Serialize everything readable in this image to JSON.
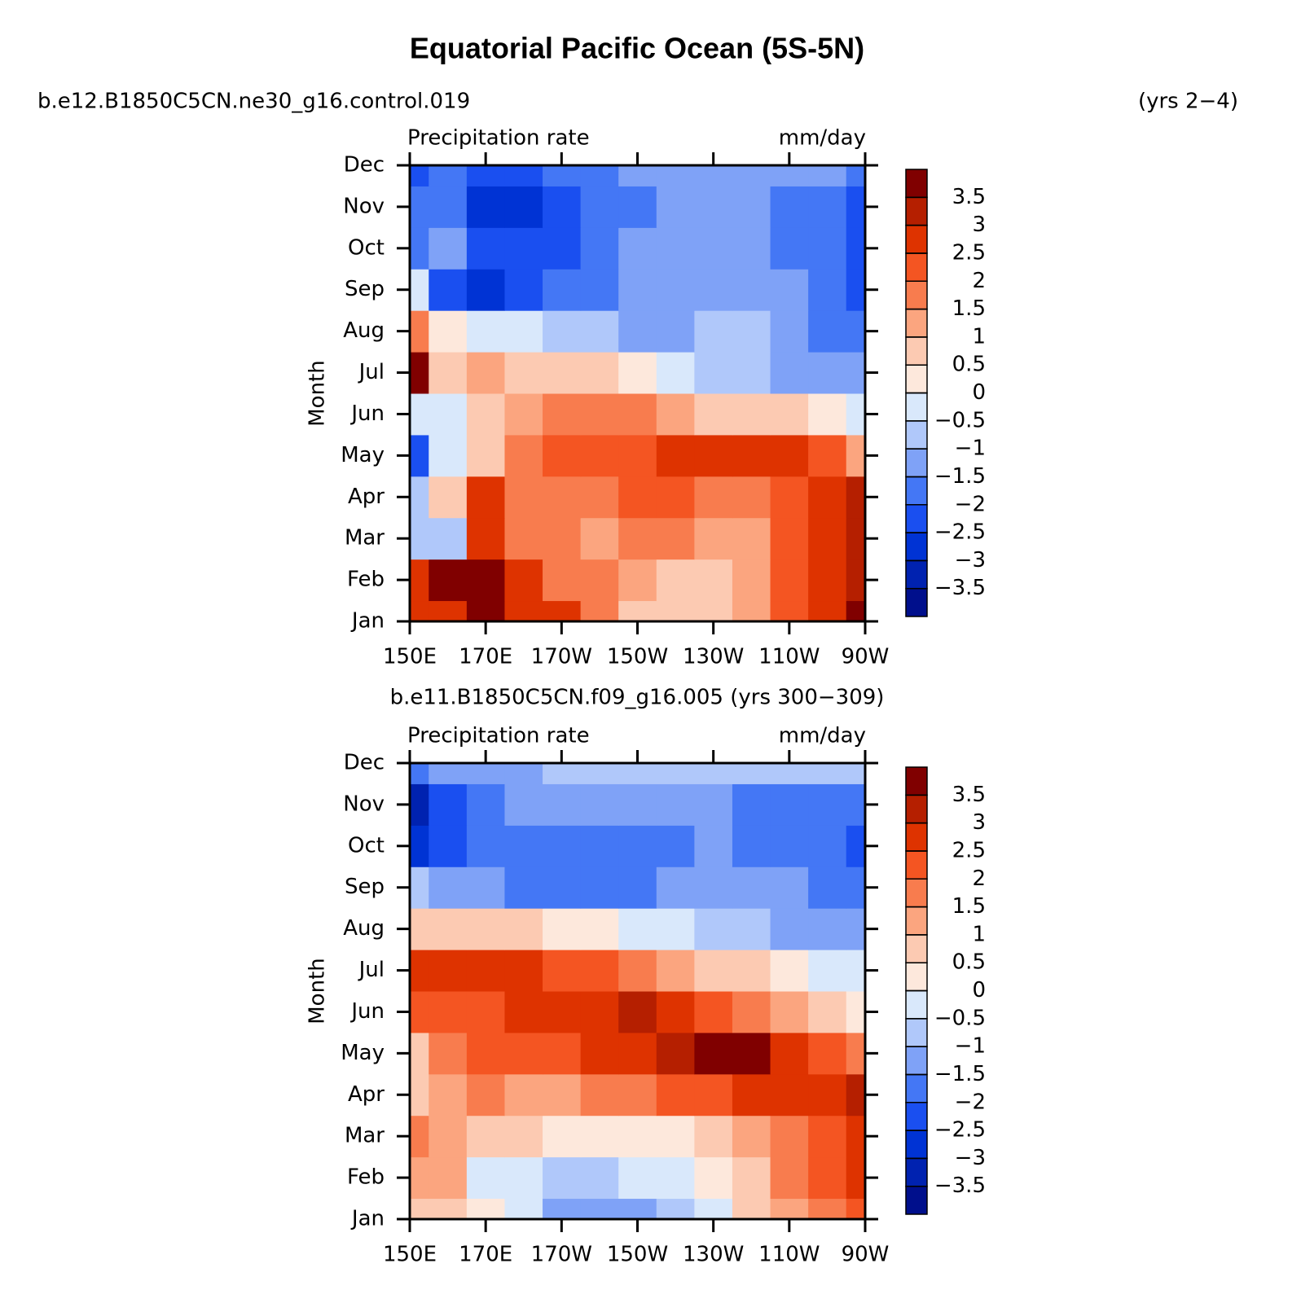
{
  "title": "Equatorial Pacific Ocean (5S-5N)",
  "chart_data": [
    {
      "type": "contour",
      "subtitle": "b.e12.B1850C5CN.ne30_g16.control.019",
      "subtitle_right": "(yrs 2−4)",
      "label_left": "Precipitation rate",
      "label_right": "mm/day",
      "ylabel": "Month",
      "categories": [
        "Jan",
        "Feb",
        "Mar",
        "Apr",
        "May",
        "Jun",
        "Jul",
        "Aug",
        "Sep",
        "Oct",
        "Nov",
        "Dec"
      ],
      "x": [
        150,
        160,
        170,
        180,
        190,
        200,
        210,
        220,
        230,
        240,
        250,
        260,
        270
      ],
      "xlim": [
        150,
        270
      ],
      "xticks": [
        {
          "value": 150,
          "label": "150E"
        },
        {
          "value": 170,
          "label": "170E"
        },
        {
          "value": 190,
          "label": "170W"
        },
        {
          "value": 210,
          "label": "150W"
        },
        {
          "value": 230,
          "label": "130W"
        },
        {
          "value": 250,
          "label": "110W"
        },
        {
          "value": 270,
          "label": "90W"
        }
      ],
      "values": [
        [
          2.5,
          2.5,
          3.5,
          2.5,
          2.5,
          1.5,
          0.5,
          0.5,
          0.5,
          1,
          2,
          2.5,
          3.5
        ],
        [
          2.5,
          3.5,
          3.5,
          2.5,
          1.5,
          1.5,
          1,
          0.5,
          0.5,
          1,
          2,
          2.5,
          3
        ],
        [
          -1,
          -1,
          2.5,
          1.5,
          1.5,
          1,
          1.5,
          1.5,
          1,
          1,
          2,
          2.5,
          3
        ],
        [
          -1,
          0.5,
          2.5,
          1.5,
          1.5,
          1.5,
          2,
          2,
          1.5,
          1.5,
          2,
          2.5,
          3
        ],
        [
          -2.5,
          -0.5,
          0.5,
          1.5,
          2,
          2,
          2,
          2.5,
          2.5,
          2.5,
          2.5,
          2,
          1
        ],
        [
          -0.5,
          -0.5,
          0.5,
          1,
          1.5,
          1.5,
          1.5,
          1,
          0.5,
          0.5,
          0.5,
          0,
          -0.5
        ],
        [
          3.5,
          0.5,
          1,
          0.5,
          0.5,
          0.5,
          0,
          -0.5,
          -1,
          -1,
          -1.5,
          -1.5,
          -1.5
        ],
        [
          1.5,
          0,
          -0.5,
          -0.5,
          -1,
          -1,
          -1.5,
          -1.5,
          -1,
          -1,
          -1.5,
          -2,
          -2
        ],
        [
          -0.5,
          -2.5,
          -3,
          -2.5,
          -2,
          -2,
          -1.5,
          -1.5,
          -1.5,
          -1.5,
          -1.5,
          -2,
          -2.5
        ],
        [
          -2,
          -1.5,
          -2.5,
          -2.5,
          -2.5,
          -2,
          -1.5,
          -1.5,
          -1.5,
          -1.5,
          -2,
          -2,
          -2.5
        ],
        [
          -2,
          -2,
          -3,
          -3,
          -2.5,
          -2,
          -2,
          -1.5,
          -1.5,
          -1.5,
          -2,
          -2,
          -2.5
        ],
        [
          -2.5,
          -2,
          -2.5,
          -2.5,
          -2,
          -2,
          -1.5,
          -1.5,
          -1.5,
          -1.5,
          -1.5,
          -1.5,
          -2
        ]
      ],
      "levels": [
        {
          "value": -3.5,
          "label": "−3.5"
        },
        {
          "value": -3,
          "label": "−3"
        },
        {
          "value": -2.5,
          "label": "−2.5"
        },
        {
          "value": -2,
          "label": "−2"
        },
        {
          "value": -1.5,
          "label": "−1.5"
        },
        {
          "value": -1,
          "label": "−1"
        },
        {
          "value": -0.5,
          "label": "−0.5"
        },
        0,
        0.5,
        1,
        1.5,
        2,
        2.5,
        3,
        3.5
      ],
      "colors": [
        "#000f8c",
        "#0022b0",
        "#0033d4",
        "#1a4ff0",
        "#4477f5",
        "#7fa2f7",
        "#b0c8fa",
        "#d9e8fb",
        "#fde8dc",
        "#fccab2",
        "#fba57f",
        "#f87c4e",
        "#f45522",
        "#de3300",
        "#b51f00",
        "#800000"
      ]
    },
    {
      "type": "contour",
      "subtitle": "b.e11.B1850C5CN.f09_g16.005 (yrs 300−309)",
      "label_left": "Precipitation rate",
      "label_right": "mm/day",
      "ylabel": "Month",
      "categories": [
        "Jan",
        "Feb",
        "Mar",
        "Apr",
        "May",
        "Jun",
        "Jul",
        "Aug",
        "Sep",
        "Oct",
        "Nov",
        "Dec"
      ],
      "x": [
        150,
        160,
        170,
        180,
        190,
        200,
        210,
        220,
        230,
        240,
        250,
        260,
        270
      ],
      "xlim": [
        150,
        270
      ],
      "xticks": [
        {
          "value": 150,
          "label": "150E"
        },
        {
          "value": 170,
          "label": "170E"
        },
        {
          "value": 190,
          "label": "170W"
        },
        {
          "value": 210,
          "label": "150W"
        },
        {
          "value": 230,
          "label": "130W"
        },
        {
          "value": 250,
          "label": "110W"
        },
        {
          "value": 270,
          "label": "90W"
        }
      ],
      "values": [
        [
          0.5,
          0.5,
          0,
          -0.5,
          -1.5,
          -1.5,
          -1.5,
          -1,
          -0.5,
          0.5,
          1,
          1.5,
          2
        ],
        [
          1,
          1,
          -0.5,
          -0.5,
          -1,
          -1,
          -0.5,
          -0.5,
          0,
          0.5,
          1.5,
          2,
          2.5
        ],
        [
          1.5,
          1,
          0.5,
          0.5,
          0,
          0,
          0,
          0,
          0.5,
          1,
          1.5,
          2,
          2.5
        ],
        [
          0.5,
          1,
          1.5,
          1,
          1,
          1.5,
          1.5,
          2,
          2,
          2.5,
          2.5,
          2.5,
          3
        ],
        [
          0.5,
          1.5,
          2,
          2,
          2,
          2.5,
          2.5,
          3,
          3.5,
          3.5,
          2.5,
          2,
          1.5
        ],
        [
          2,
          2,
          2,
          2.5,
          2.5,
          2.5,
          3,
          2.5,
          2,
          1.5,
          1,
          0.5,
          0
        ],
        [
          2.5,
          2.5,
          2.5,
          2.5,
          2,
          2,
          1.5,
          1,
          0.5,
          0.5,
          0,
          -0.5,
          -0.5
        ],
        [
          0.5,
          0.5,
          0.5,
          0.5,
          0,
          0,
          -0.5,
          -0.5,
          -1,
          -1,
          -1.5,
          -1.5,
          -1.5
        ],
        [
          -1,
          -1.5,
          -1.5,
          -2,
          -2,
          -2,
          -2,
          -1.5,
          -1.5,
          -1.5,
          -1.5,
          -2,
          -2
        ],
        [
          -3,
          -2.5,
          -2,
          -2,
          -2,
          -2,
          -2,
          -2,
          -1.5,
          -2,
          -2,
          -2,
          -2.5
        ],
        [
          -3.5,
          -2.5,
          -2,
          -1.5,
          -1.5,
          -1.5,
          -1.5,
          -1.5,
          -1.5,
          -2,
          -2,
          -2,
          -2
        ],
        [
          -2,
          -1.5,
          -1.5,
          -1.5,
          -1,
          -1,
          -1,
          -1,
          -1,
          -1,
          -1,
          -1,
          -1
        ]
      ],
      "levels": [
        {
          "value": -3.5,
          "label": "−3.5"
        },
        {
          "value": -3,
          "label": "−3"
        },
        {
          "value": -2.5,
          "label": "−2.5"
        },
        {
          "value": -2,
          "label": "−2"
        },
        {
          "value": -1.5,
          "label": "−1.5"
        },
        {
          "value": -1,
          "label": "−1"
        },
        {
          "value": -0.5,
          "label": "−0.5"
        },
        0,
        0.5,
        1,
        1.5,
        2,
        2.5,
        3,
        3.5
      ],
      "colors": [
        "#000f8c",
        "#0022b0",
        "#0033d4",
        "#1a4ff0",
        "#4477f5",
        "#7fa2f7",
        "#b0c8fa",
        "#d9e8fb",
        "#fde8dc",
        "#fccab2",
        "#fba57f",
        "#f87c4e",
        "#f45522",
        "#de3300",
        "#b51f00",
        "#800000"
      ]
    }
  ]
}
